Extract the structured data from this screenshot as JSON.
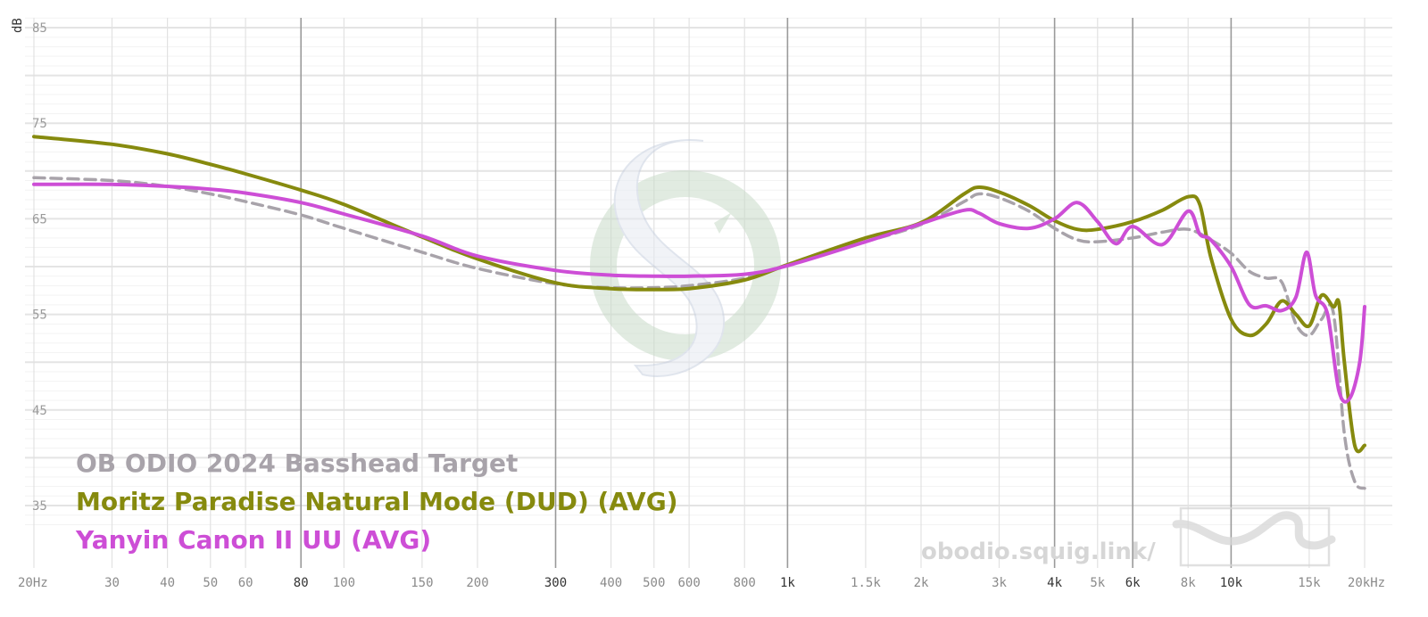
{
  "chart_data": {
    "type": "line",
    "title": "",
    "xlabel": "",
    "ylabel": "dB",
    "xscale": "log",
    "xlim": [
      20,
      20000
    ],
    "ylim": [
      30,
      85
    ],
    "grid": true,
    "legend_position": "bottom-left",
    "x_ticks": [
      {
        "value": 20,
        "label": "20Hz",
        "major": false
      },
      {
        "value": 30,
        "label": "30",
        "major": false
      },
      {
        "value": 40,
        "label": "40",
        "major": false
      },
      {
        "value": 50,
        "label": "50",
        "major": false
      },
      {
        "value": 60,
        "label": "60",
        "major": false
      },
      {
        "value": 80,
        "label": "80",
        "major": true
      },
      {
        "value": 100,
        "label": "100",
        "major": false
      },
      {
        "value": 150,
        "label": "150",
        "major": false
      },
      {
        "value": 200,
        "label": "200",
        "major": false
      },
      {
        "value": 300,
        "label": "300",
        "major": true
      },
      {
        "value": 400,
        "label": "400",
        "major": false
      },
      {
        "value": 500,
        "label": "500",
        "major": false
      },
      {
        "value": 600,
        "label": "600",
        "major": false
      },
      {
        "value": 800,
        "label": "800",
        "major": false
      },
      {
        "value": 1000,
        "label": "1k",
        "major": true
      },
      {
        "value": 1500,
        "label": "1.5k",
        "major": false
      },
      {
        "value": 2000,
        "label": "2k",
        "major": false
      },
      {
        "value": 3000,
        "label": "3k",
        "major": false
      },
      {
        "value": 4000,
        "label": "4k",
        "major": true
      },
      {
        "value": 5000,
        "label": "5k",
        "major": false
      },
      {
        "value": 6000,
        "label": "6k",
        "major": true
      },
      {
        "value": 8000,
        "label": "8k",
        "major": false
      },
      {
        "value": 10000,
        "label": "10k",
        "major": true
      },
      {
        "value": 15000,
        "label": "15k",
        "major": false
      },
      {
        "value": 20000,
        "label": "20kHz",
        "major": false
      }
    ],
    "y_ticks": [
      {
        "value": 85,
        "label": "85"
      },
      {
        "value": 75,
        "label": "75"
      },
      {
        "value": 65,
        "label": "65"
      },
      {
        "value": 55,
        "label": "55"
      },
      {
        "value": 45,
        "label": "45"
      },
      {
        "value": 35,
        "label": "35"
      }
    ],
    "series": [
      {
        "name": "OB ODIO 2024 Basshead Target",
        "color": "#a8a3aa",
        "style": "dashed",
        "points": [
          [
            20,
            69.3
          ],
          [
            30,
            69.0
          ],
          [
            40,
            68.4
          ],
          [
            50,
            67.6
          ],
          [
            60,
            66.8
          ],
          [
            80,
            65.4
          ],
          [
            100,
            64.0
          ],
          [
            150,
            61.5
          ],
          [
            200,
            59.8
          ],
          [
            300,
            58.2
          ],
          [
            400,
            57.8
          ],
          [
            500,
            57.8
          ],
          [
            600,
            58.0
          ],
          [
            800,
            58.8
          ],
          [
            1000,
            60.2
          ],
          [
            1500,
            62.6
          ],
          [
            2000,
            64.4
          ],
          [
            2500,
            66.8
          ],
          [
            2700,
            67.6
          ],
          [
            3000,
            67.2
          ],
          [
            3500,
            65.8
          ],
          [
            4000,
            64.0
          ],
          [
            4500,
            62.8
          ],
          [
            5000,
            62.6
          ],
          [
            6000,
            63.0
          ],
          [
            7000,
            63.6
          ],
          [
            8000,
            63.9
          ],
          [
            9000,
            62.8
          ],
          [
            10000,
            61.4
          ],
          [
            11000,
            59.5
          ],
          [
            12000,
            58.8
          ],
          [
            13000,
            58.4
          ],
          [
            14000,
            54.0
          ],
          [
            15000,
            52.8
          ],
          [
            16000,
            54.5
          ],
          [
            17000,
            55.2
          ],
          [
            18000,
            42.5
          ],
          [
            19000,
            37.5
          ],
          [
            20000,
            36.8
          ]
        ]
      },
      {
        "name": "Moritz Paradise Natural Mode (DUD) (AVG)",
        "color": "#868a0e",
        "style": "solid",
        "points": [
          [
            20,
            73.6
          ],
          [
            30,
            72.8
          ],
          [
            40,
            71.8
          ],
          [
            50,
            70.7
          ],
          [
            60,
            69.7
          ],
          [
            80,
            68.0
          ],
          [
            100,
            66.5
          ],
          [
            150,
            63.1
          ],
          [
            200,
            60.8
          ],
          [
            300,
            58.3
          ],
          [
            400,
            57.7
          ],
          [
            500,
            57.6
          ],
          [
            600,
            57.7
          ],
          [
            800,
            58.6
          ],
          [
            1000,
            60.2
          ],
          [
            1500,
            63.0
          ],
          [
            2000,
            64.6
          ],
          [
            2500,
            67.6
          ],
          [
            2700,
            68.3
          ],
          [
            3000,
            67.8
          ],
          [
            3500,
            66.4
          ],
          [
            4000,
            64.8
          ],
          [
            4500,
            63.9
          ],
          [
            5000,
            63.9
          ],
          [
            6000,
            64.7
          ],
          [
            7000,
            65.9
          ],
          [
            8000,
            67.3
          ],
          [
            8500,
            66.5
          ],
          [
            9000,
            61.0
          ],
          [
            10000,
            54.5
          ],
          [
            11000,
            52.8
          ],
          [
            12000,
            54.0
          ],
          [
            13000,
            56.4
          ],
          [
            14000,
            55.0
          ],
          [
            15000,
            53.8
          ],
          [
            16000,
            57.0
          ],
          [
            17000,
            55.8
          ],
          [
            17500,
            56.2
          ],
          [
            18000,
            50.0
          ],
          [
            19000,
            41.3
          ],
          [
            20000,
            41.3
          ]
        ]
      },
      {
        "name": "Yanyin Canon II UU (AVG)",
        "color": "#cd4ed6",
        "style": "solid",
        "points": [
          [
            20,
            68.6
          ],
          [
            30,
            68.6
          ],
          [
            40,
            68.4
          ],
          [
            50,
            68.1
          ],
          [
            60,
            67.7
          ],
          [
            80,
            66.7
          ],
          [
            100,
            65.5
          ],
          [
            150,
            63.2
          ],
          [
            200,
            61.1
          ],
          [
            300,
            59.6
          ],
          [
            400,
            59.1
          ],
          [
            500,
            59.0
          ],
          [
            600,
            59.0
          ],
          [
            800,
            59.2
          ],
          [
            1000,
            60.1
          ],
          [
            1500,
            62.6
          ],
          [
            2000,
            64.5
          ],
          [
            2500,
            65.9
          ],
          [
            2700,
            65.6
          ],
          [
            3000,
            64.5
          ],
          [
            3500,
            64.0
          ],
          [
            4000,
            65.0
          ],
          [
            4500,
            66.7
          ],
          [
            5000,
            64.7
          ],
          [
            5500,
            62.4
          ],
          [
            6000,
            64.2
          ],
          [
            7000,
            62.3
          ],
          [
            8000,
            65.8
          ],
          [
            8500,
            63.4
          ],
          [
            9000,
            62.8
          ],
          [
            10000,
            60.0
          ],
          [
            11000,
            56.0
          ],
          [
            12000,
            55.9
          ],
          [
            13000,
            55.4
          ],
          [
            14000,
            56.8
          ],
          [
            14800,
            61.5
          ],
          [
            15500,
            57.0
          ],
          [
            16500,
            55.0
          ],
          [
            17500,
            47.0
          ],
          [
            18500,
            46.2
          ],
          [
            19500,
            50.0
          ],
          [
            20000,
            55.8
          ]
        ]
      }
    ]
  },
  "watermark": {
    "url_text": "obodio.squig.link/",
    "logo_icon": "squiggle-logo-icon",
    "center_logo_icon": "squig-s-logo-icon"
  }
}
